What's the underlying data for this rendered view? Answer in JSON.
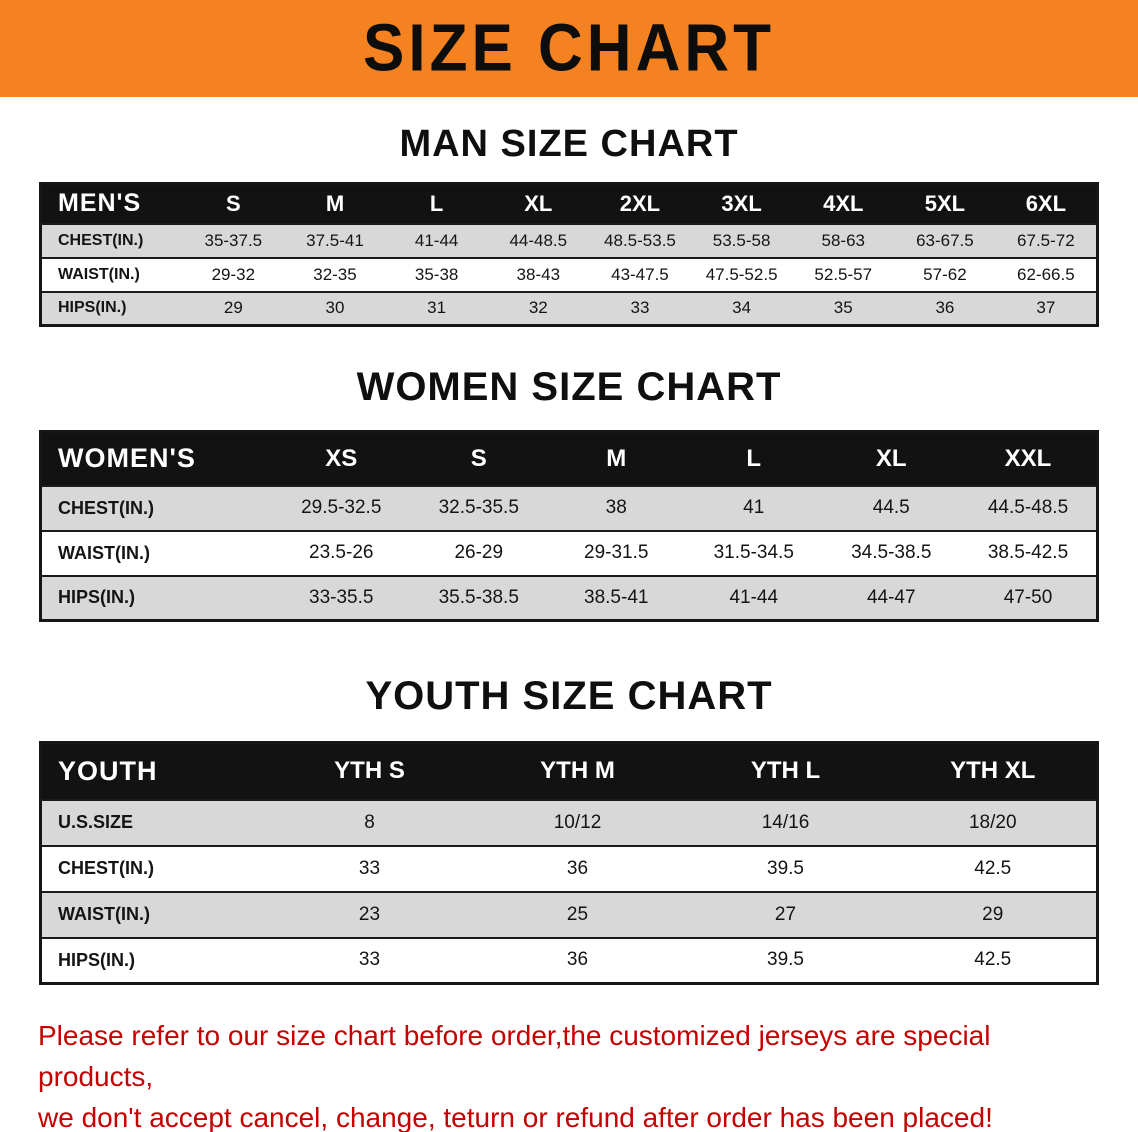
{
  "banner": {
    "title": "SIZE CHART"
  },
  "colors": {
    "orange_banner": "#F58220",
    "header_bar": "#121212",
    "row_stripe": "#d8d8d8",
    "footer_red": "#c40000"
  },
  "sections": [
    {
      "id": "men",
      "heading": "MAN SIZE CHART",
      "header_label": "MEN'S",
      "columns": [
        "S",
        "M",
        "L",
        "XL",
        "2XL",
        "3XL",
        "4XL",
        "5XL",
        "6XL"
      ],
      "rows": [
        {
          "label": "CHEST(IN.)",
          "values": [
            "35-37.5",
            "37.5-41",
            "41-44",
            "44-48.5",
            "48.5-53.5",
            "53.5-58",
            "58-63",
            "63-67.5",
            "67.5-72"
          ]
        },
        {
          "label": "WAIST(IN.)",
          "values": [
            "29-32",
            "32-35",
            "35-38",
            "38-43",
            "43-47.5",
            "47.5-52.5",
            "52.5-57",
            "57-62",
            "62-66.5"
          ]
        },
        {
          "label": "HIPS(IN.)",
          "values": [
            "29",
            "30",
            "31",
            "32",
            "33",
            "34",
            "35",
            "36",
            "37"
          ]
        }
      ]
    },
    {
      "id": "women",
      "heading": "WOMEN SIZE CHART",
      "header_label": "WOMEN'S",
      "columns": [
        "XS",
        "S",
        "M",
        "L",
        "XL",
        "XXL"
      ],
      "rows": [
        {
          "label": "CHEST(IN.)",
          "values": [
            "29.5-32.5",
            "32.5-35.5",
            "38",
            "41",
            "44.5",
            "44.5-48.5"
          ]
        },
        {
          "label": "WAIST(IN.)",
          "values": [
            "23.5-26",
            "26-29",
            "29-31.5",
            "31.5-34.5",
            "34.5-38.5",
            "38.5-42.5"
          ]
        },
        {
          "label": "HIPS(IN.)",
          "values": [
            "33-35.5",
            "35.5-38.5",
            "38.5-41",
            "41-44",
            "44-47",
            "47-50"
          ]
        }
      ]
    },
    {
      "id": "youth",
      "heading": "YOUTH SIZE CHART",
      "header_label": "YOUTH",
      "columns": [
        "YTH S",
        "YTH M",
        "YTH L",
        "YTH XL"
      ],
      "rows": [
        {
          "label": "U.S.SIZE",
          "values": [
            "8",
            "10/12",
            "14/16",
            "18/20"
          ]
        },
        {
          "label": "CHEST(IN.)",
          "values": [
            "33",
            "36",
            "39.5",
            "42.5"
          ]
        },
        {
          "label": "WAIST(IN.)",
          "values": [
            "23",
            "25",
            "27",
            "29"
          ]
        },
        {
          "label": "HIPS(IN.)",
          "values": [
            "33",
            "36",
            "39.5",
            "42.5"
          ]
        }
      ]
    }
  ],
  "footer_note": {
    "line1": "Please refer to our size chart before order,the customized jerseys are special products,",
    "line2": "we don't accept cancel, change, teturn or refund after order has been placed!"
  }
}
